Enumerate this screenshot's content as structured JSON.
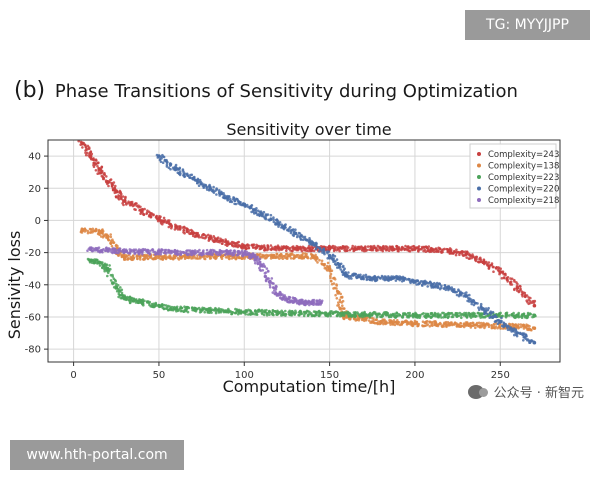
{
  "overlay": {
    "tg_badge": "TG: MYYJJPP",
    "url_badge": "www.hth-portal.com",
    "watermark": "公众号 · 新智元"
  },
  "panel": {
    "label": "(b)",
    "title": "Phase Transitions of Sensitivity during Optimization"
  },
  "chart_data": {
    "type": "scatter",
    "title": "Sensitivity over time",
    "xlabel": "Computation time/[h]",
    "ylabel": "Sensivity loss",
    "xlim": [
      -15,
      285
    ],
    "ylim": [
      -88,
      50
    ],
    "xticks": [
      0,
      50,
      100,
      150,
      200,
      250
    ],
    "yticks": [
      40,
      20,
      0,
      -20,
      -40,
      -60,
      -80
    ],
    "grid": true,
    "legend_position": "top-right",
    "series": [
      {
        "name": "Complexity=243",
        "color": "#c8403f",
        "x": [
          5,
          10,
          15,
          20,
          25,
          30,
          40,
          50,
          60,
          70,
          80,
          90,
          100,
          110,
          120,
          130,
          150,
          170,
          190,
          200,
          210,
          220,
          230,
          240,
          250,
          260,
          270
        ],
        "y": [
          48,
          40,
          32,
          24,
          18,
          12,
          6,
          1,
          -4,
          -8,
          -11,
          -14,
          -16,
          -17,
          -17,
          -17.5,
          -17.5,
          -17.5,
          -17.5,
          -17.5,
          -18,
          -19,
          -21,
          -26,
          -32,
          -42,
          -53
        ]
      },
      {
        "name": "Complexity=138",
        "color": "#dd8745",
        "x": [
          5,
          15,
          20,
          25,
          30,
          140,
          150,
          155,
          158,
          160,
          170,
          180,
          200,
          230,
          260,
          270
        ],
        "y": [
          -6,
          -7,
          -10,
          -18,
          -23,
          -22,
          -30,
          -45,
          -58,
          -60,
          -61,
          -63,
          -64,
          -65,
          -66,
          -67
        ]
      },
      {
        "name": "Complexity=223",
        "color": "#4ca35a",
        "x": [
          10,
          15,
          20,
          25,
          30,
          35,
          40,
          50,
          60,
          80,
          100,
          120,
          150,
          170,
          200,
          230,
          260,
          270
        ],
        "y": [
          -25,
          -26,
          -30,
          -42,
          -48,
          -50,
          -51,
          -53,
          -55,
          -56,
          -57,
          -57.5,
          -58,
          -58.5,
          -59,
          -59,
          -59,
          -59
        ]
      },
      {
        "name": "Complexity=220",
        "color": "#4a6fa8",
        "x": [
          50,
          60,
          70,
          80,
          90,
          100,
          110,
          120,
          130,
          140,
          150,
          155,
          160,
          175,
          190,
          200,
          210,
          220,
          230,
          240,
          250,
          260,
          270
        ],
        "y": [
          40,
          32,
          26,
          20,
          14,
          10,
          4,
          -2,
          -8,
          -14,
          -22,
          -27,
          -34,
          -36,
          -36,
          -38,
          -40,
          -42,
          -47,
          -55,
          -63,
          -70,
          -76
        ]
      },
      {
        "name": "Complexity=218",
        "color": "#8e6cbd",
        "x": [
          10,
          20,
          30,
          40,
          50,
          60,
          70,
          80,
          90,
          100,
          105,
          110,
          115,
          120,
          125,
          130,
          135,
          140,
          145
        ],
        "y": [
          -18,
          -18.5,
          -19,
          -19.5,
          -19.5,
          -20,
          -20,
          -20,
          -20,
          -20.5,
          -22,
          -28,
          -38,
          -46,
          -49,
          -50,
          -51,
          -51,
          -51
        ]
      }
    ]
  }
}
